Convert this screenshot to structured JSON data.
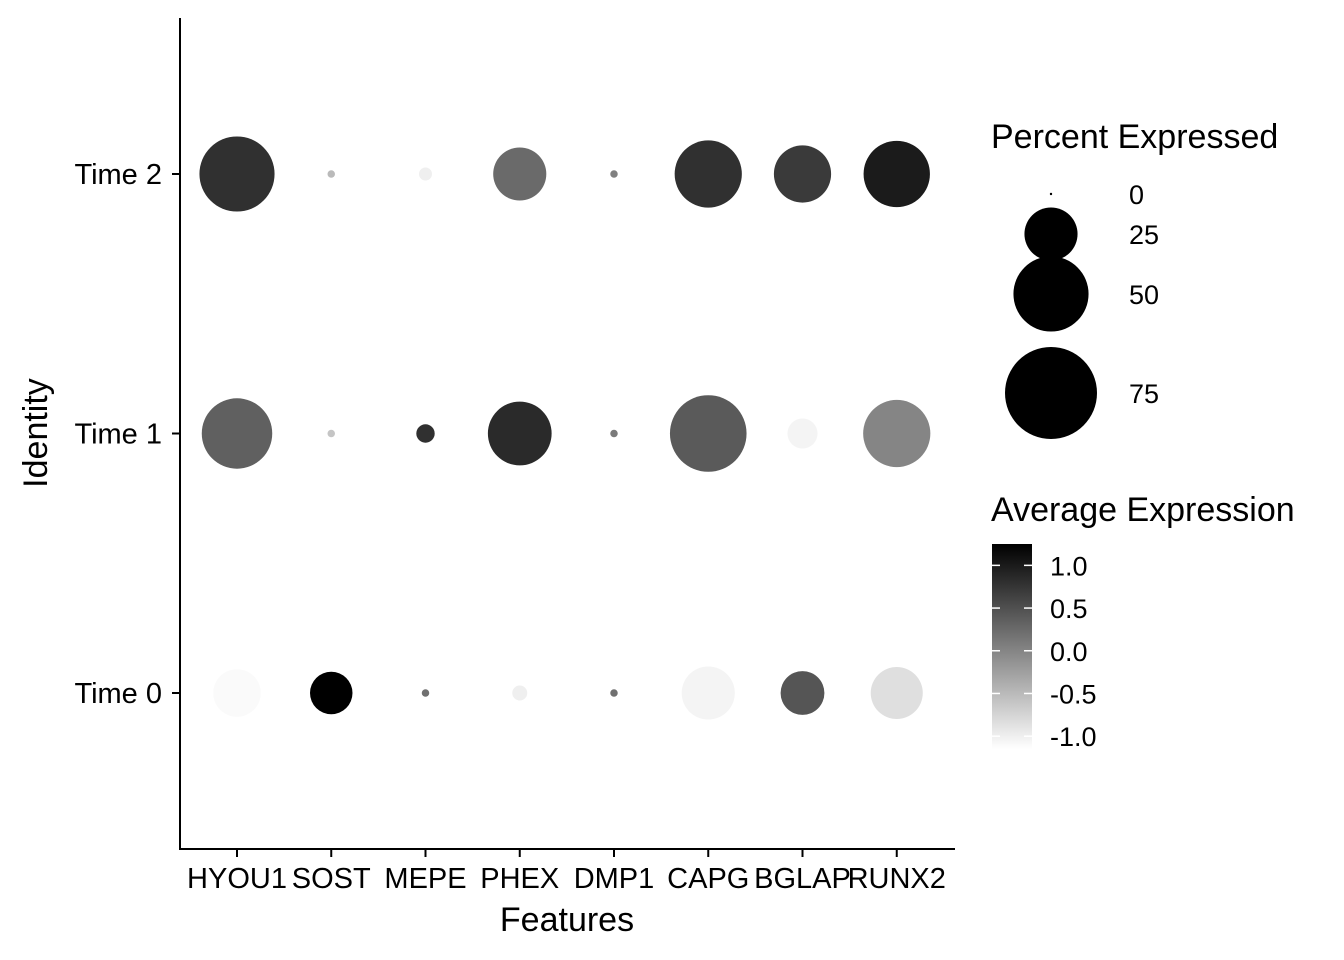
{
  "chart_data": {
    "type": "dotplot",
    "xlabel": "Features",
    "ylabel": "Identity",
    "features": [
      "HYOU1",
      "SOST",
      "MEPE",
      "PHEX",
      "DMP1",
      "CAPG",
      "BGLAP",
      "RUNX2"
    ],
    "identities": [
      "Time 0",
      "Time 1",
      "Time 2"
    ],
    "percent_expressed": [
      [
        20,
        16,
        0.5,
        2,
        0.5,
        25,
        17,
        24
      ],
      [
        44,
        0.5,
        3,
        36,
        0.5,
        52,
        8,
        40
      ],
      [
        50,
        0.5,
        1.5,
        25,
        0.5,
        40,
        29,
        39
      ]
    ],
    "average_expression": [
      [
        -1.1,
        1.3,
        0.2,
        -1.0,
        0.2,
        -1.05,
        0.45,
        -0.85
      ],
      [
        0.35,
        -0.6,
        0.8,
        0.85,
        0.1,
        0.4,
        -1.05,
        0.0
      ],
      [
        0.8,
        -0.5,
        -1.0,
        0.25,
        0.05,
        0.8,
        0.7,
        1.0
      ]
    ],
    "size_legend": {
      "title": "Percent Expressed",
      "values": [
        0,
        25,
        50,
        75
      ],
      "labels": [
        "0",
        "25",
        "50",
        "75"
      ]
    },
    "color_legend": {
      "title": "Average Expression",
      "min": -1.15,
      "max": 1.25,
      "ticks": [
        1.0,
        0.5,
        0.0,
        -0.5,
        -1.0
      ],
      "labels": [
        "1.0",
        "0.5",
        "0.0",
        "-0.5",
        "-1.0"
      ],
      "low_color": "#ffffff",
      "high_color": "#000000"
    },
    "legend_position": "right",
    "grid": false
  }
}
